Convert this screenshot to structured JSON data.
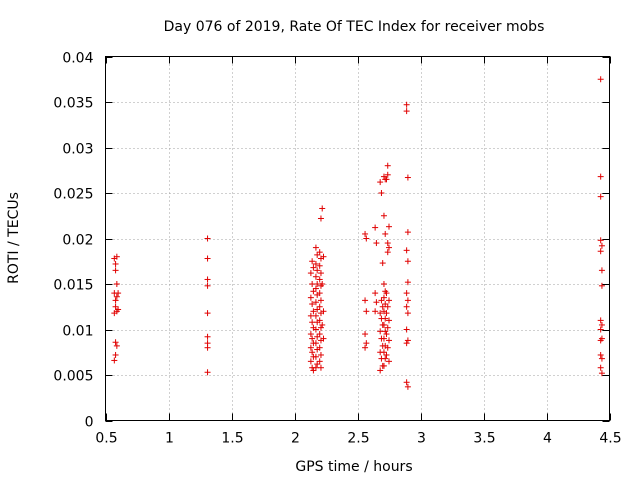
{
  "chart_data": {
    "type": "scatter",
    "title": "Day 076 of 2019, Rate Of TEC Index for receiver mobs",
    "xlabel": "GPS time / hours",
    "ylabel": "ROTI / TECUs",
    "xlim": [
      0.5,
      4.5
    ],
    "ylim": [
      0,
      0.04
    ],
    "xticks": [
      0.5,
      1,
      1.5,
      2,
      2.5,
      3,
      3.5,
      4,
      4.5
    ],
    "xtick_labels": [
      "0.5",
      "1",
      "1.5",
      "2",
      "2.5",
      "3",
      "3.5",
      "4",
      "4.5"
    ],
    "yticks": [
      0,
      0.005,
      0.01,
      0.015,
      0.02,
      0.025,
      0.03,
      0.035,
      0.04
    ],
    "ytick_labels": [
      "0",
      "0.005",
      "0.01",
      "0.015",
      "0.02",
      "0.025",
      "0.03",
      "0.035",
      "0.04"
    ],
    "grid": true,
    "marker": "+",
    "series": [
      {
        "name": "ROTI",
        "color": "#e00000",
        "points": [
          [
            0.57,
            0.0178
          ],
          [
            0.58,
            0.0172
          ],
          [
            0.59,
            0.018
          ],
          [
            0.58,
            0.0165
          ],
          [
            0.59,
            0.015
          ],
          [
            0.57,
            0.014
          ],
          [
            0.59,
            0.0136
          ],
          [
            0.58,
            0.0132
          ],
          [
            0.6,
            0.014
          ],
          [
            0.58,
            0.0125
          ],
          [
            0.59,
            0.012
          ],
          [
            0.57,
            0.0118
          ],
          [
            0.6,
            0.0122
          ],
          [
            0.58,
            0.0086
          ],
          [
            0.59,
            0.0082
          ],
          [
            0.58,
            0.0072
          ],
          [
            0.57,
            0.0066
          ],
          [
            1.31,
            0.02
          ],
          [
            1.31,
            0.0178
          ],
          [
            1.31,
            0.0155
          ],
          [
            1.31,
            0.0148
          ],
          [
            1.31,
            0.0118
          ],
          [
            1.31,
            0.0092
          ],
          [
            1.31,
            0.0085
          ],
          [
            1.31,
            0.008
          ],
          [
            1.31,
            0.0053
          ],
          [
            2.14,
            0.0175
          ],
          [
            2.15,
            0.0168
          ],
          [
            2.13,
            0.0162
          ],
          [
            2.14,
            0.015
          ],
          [
            2.15,
            0.0142
          ],
          [
            2.13,
            0.0135
          ],
          [
            2.14,
            0.0128
          ],
          [
            2.15,
            0.012
          ],
          [
            2.13,
            0.0115
          ],
          [
            2.14,
            0.0108
          ],
          [
            2.15,
            0.0102
          ],
          [
            2.13,
            0.0095
          ],
          [
            2.14,
            0.009
          ],
          [
            2.15,
            0.0085
          ],
          [
            2.13,
            0.008
          ],
          [
            2.14,
            0.0075
          ],
          [
            2.15,
            0.007
          ],
          [
            2.13,
            0.0065
          ],
          [
            2.14,
            0.0058
          ],
          [
            2.15,
            0.0055
          ],
          [
            2.17,
            0.019
          ],
          [
            2.18,
            0.0182
          ],
          [
            2.17,
            0.0172
          ],
          [
            2.18,
            0.0165
          ],
          [
            2.17,
            0.0158
          ],
          [
            2.18,
            0.015
          ],
          [
            2.17,
            0.0145
          ],
          [
            2.18,
            0.0138
          ],
          [
            2.17,
            0.013
          ],
          [
            2.18,
            0.0122
          ],
          [
            2.17,
            0.0115
          ],
          [
            2.18,
            0.0108
          ],
          [
            2.17,
            0.01
          ],
          [
            2.18,
            0.0092
          ],
          [
            2.17,
            0.0085
          ],
          [
            2.18,
            0.0078
          ],
          [
            2.17,
            0.007
          ],
          [
            2.18,
            0.0062
          ],
          [
            2.17,
            0.0058
          ],
          [
            2.2,
            0.0185
          ],
          [
            2.21,
            0.0178
          ],
          [
            2.2,
            0.017
          ],
          [
            2.21,
            0.0162
          ],
          [
            2.2,
            0.0155
          ],
          [
            2.21,
            0.0148
          ],
          [
            2.2,
            0.014
          ],
          [
            2.21,
            0.0132
          ],
          [
            2.2,
            0.0125
          ],
          [
            2.21,
            0.0118
          ],
          [
            2.2,
            0.011
          ],
          [
            2.21,
            0.0102
          ],
          [
            2.2,
            0.0095
          ],
          [
            2.21,
            0.0088
          ],
          [
            2.2,
            0.008
          ],
          [
            2.21,
            0.0072
          ],
          [
            2.2,
            0.0065
          ],
          [
            2.21,
            0.0058
          ],
          [
            2.22,
            0.0233
          ],
          [
            2.21,
            0.0222
          ],
          [
            2.23,
            0.018
          ],
          [
            2.22,
            0.015
          ],
          [
            2.23,
            0.012
          ],
          [
            2.22,
            0.0105
          ],
          [
            2.23,
            0.009
          ],
          [
            2.56,
            0.0205
          ],
          [
            2.57,
            0.02
          ],
          [
            2.56,
            0.0132
          ],
          [
            2.57,
            0.012
          ],
          [
            2.56,
            0.0095
          ],
          [
            2.57,
            0.0085
          ],
          [
            2.56,
            0.008
          ],
          [
            2.64,
            0.0212
          ],
          [
            2.65,
            0.0195
          ],
          [
            2.64,
            0.014
          ],
          [
            2.65,
            0.013
          ],
          [
            2.64,
            0.012
          ],
          [
            2.68,
            0.0262
          ],
          [
            2.69,
            0.025
          ],
          [
            2.7,
            0.0173
          ],
          [
            2.69,
            0.0132
          ],
          [
            2.7,
            0.0125
          ],
          [
            2.68,
            0.0118
          ],
          [
            2.69,
            0.0112
          ],
          [
            2.7,
            0.0105
          ],
          [
            2.68,
            0.0098
          ],
          [
            2.69,
            0.009
          ],
          [
            2.7,
            0.0082
          ],
          [
            2.68,
            0.0075
          ],
          [
            2.69,
            0.0068
          ],
          [
            2.7,
            0.006
          ],
          [
            2.68,
            0.0055
          ],
          [
            2.71,
            0.0268
          ],
          [
            2.72,
            0.0265
          ],
          [
            2.71,
            0.0225
          ],
          [
            2.72,
            0.0205
          ],
          [
            2.71,
            0.015
          ],
          [
            2.72,
            0.0142
          ],
          [
            2.71,
            0.0135
          ],
          [
            2.72,
            0.0128
          ],
          [
            2.71,
            0.012
          ],
          [
            2.72,
            0.0112
          ],
          [
            2.71,
            0.0105
          ],
          [
            2.72,
            0.0098
          ],
          [
            2.71,
            0.009
          ],
          [
            2.72,
            0.0082
          ],
          [
            2.71,
            0.0075
          ],
          [
            2.72,
            0.0068
          ],
          [
            2.71,
            0.006
          ],
          [
            2.73,
            0.0265
          ],
          [
            2.74,
            0.028
          ],
          [
            2.74,
            0.027
          ],
          [
            2.75,
            0.0213
          ],
          [
            2.74,
            0.0195
          ],
          [
            2.75,
            0.019
          ],
          [
            2.74,
            0.0185
          ],
          [
            2.73,
            0.014
          ],
          [
            2.75,
            0.0132
          ],
          [
            2.74,
            0.0125
          ],
          [
            2.73,
            0.0118
          ],
          [
            2.75,
            0.011
          ],
          [
            2.74,
            0.0102
          ],
          [
            2.73,
            0.0095
          ],
          [
            2.75,
            0.0088
          ],
          [
            2.74,
            0.008
          ],
          [
            2.73,
            0.0072
          ],
          [
            2.75,
            0.0065
          ],
          [
            2.89,
            0.0347
          ],
          [
            2.89,
            0.034
          ],
          [
            2.9,
            0.0267
          ],
          [
            2.9,
            0.0207
          ],
          [
            2.89,
            0.0187
          ],
          [
            2.9,
            0.0175
          ],
          [
            2.9,
            0.0152
          ],
          [
            2.89,
            0.014
          ],
          [
            2.9,
            0.0132
          ],
          [
            2.89,
            0.0125
          ],
          [
            2.9,
            0.0118
          ],
          [
            2.89,
            0.01
          ],
          [
            2.9,
            0.0088
          ],
          [
            2.89,
            0.0085
          ],
          [
            2.89,
            0.0042
          ],
          [
            2.9,
            0.0037
          ],
          [
            4.43,
            0.0375
          ],
          [
            4.43,
            0.0268
          ],
          [
            4.43,
            0.0246
          ],
          [
            4.43,
            0.0198
          ],
          [
            4.44,
            0.0192
          ],
          [
            4.43,
            0.0186
          ],
          [
            4.44,
            0.0165
          ],
          [
            4.44,
            0.0148
          ],
          [
            4.43,
            0.011
          ],
          [
            4.44,
            0.0105
          ],
          [
            4.43,
            0.01
          ],
          [
            4.44,
            0.009
          ],
          [
            4.43,
            0.0088
          ],
          [
            4.43,
            0.0072
          ],
          [
            4.44,
            0.0068
          ],
          [
            4.43,
            0.0058
          ],
          [
            4.44,
            0.0052
          ]
        ]
      }
    ]
  }
}
